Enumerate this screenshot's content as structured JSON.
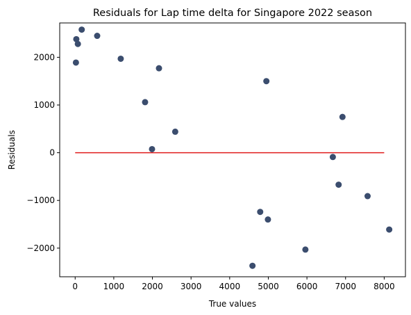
{
  "chart_data": {
    "type": "scatter",
    "title": "Residuals for Lap time delta for Singapore 2022 season",
    "xlabel": "True values",
    "ylabel": "Residuals",
    "xlim": [
      -400,
      8550
    ],
    "ylim": [
      -2600,
      2720
    ],
    "xticks": [
      0,
      1000,
      2000,
      3000,
      4000,
      5000,
      6000,
      7000,
      8000
    ],
    "xtick_labels": [
      "0",
      "1000",
      "2000",
      "3000",
      "4000",
      "5000",
      "6000",
      "7000",
      "8000"
    ],
    "yticks": [
      -2000,
      -1000,
      0,
      1000,
      2000
    ],
    "ytick_labels": [
      "−2000",
      "−1000",
      "0",
      "1000",
      "2000"
    ],
    "grid": false,
    "point_color": "#3b4d6e",
    "line_color": "#e01b1b",
    "points": [
      {
        "x": 20,
        "y": 1890
      },
      {
        "x": 30,
        "y": 2380
      },
      {
        "x": 70,
        "y": 2280
      },
      {
        "x": 170,
        "y": 2580
      },
      {
        "x": 570,
        "y": 2450
      },
      {
        "x": 1180,
        "y": 1970
      },
      {
        "x": 1810,
        "y": 1060
      },
      {
        "x": 1990,
        "y": 75
      },
      {
        "x": 2170,
        "y": 1770
      },
      {
        "x": 2590,
        "y": 440
      },
      {
        "x": 4590,
        "y": -2370
      },
      {
        "x": 4790,
        "y": -1240
      },
      {
        "x": 4950,
        "y": 1500
      },
      {
        "x": 4990,
        "y": -1400
      },
      {
        "x": 5960,
        "y": -2030
      },
      {
        "x": 6670,
        "y": -90
      },
      {
        "x": 6820,
        "y": -670
      },
      {
        "x": 6920,
        "y": 750
      },
      {
        "x": 7570,
        "y": -910
      },
      {
        "x": 8130,
        "y": -1610
      }
    ],
    "reference_line": {
      "x": [
        0,
        8000
      ],
      "y": [
        0,
        0
      ]
    }
  }
}
